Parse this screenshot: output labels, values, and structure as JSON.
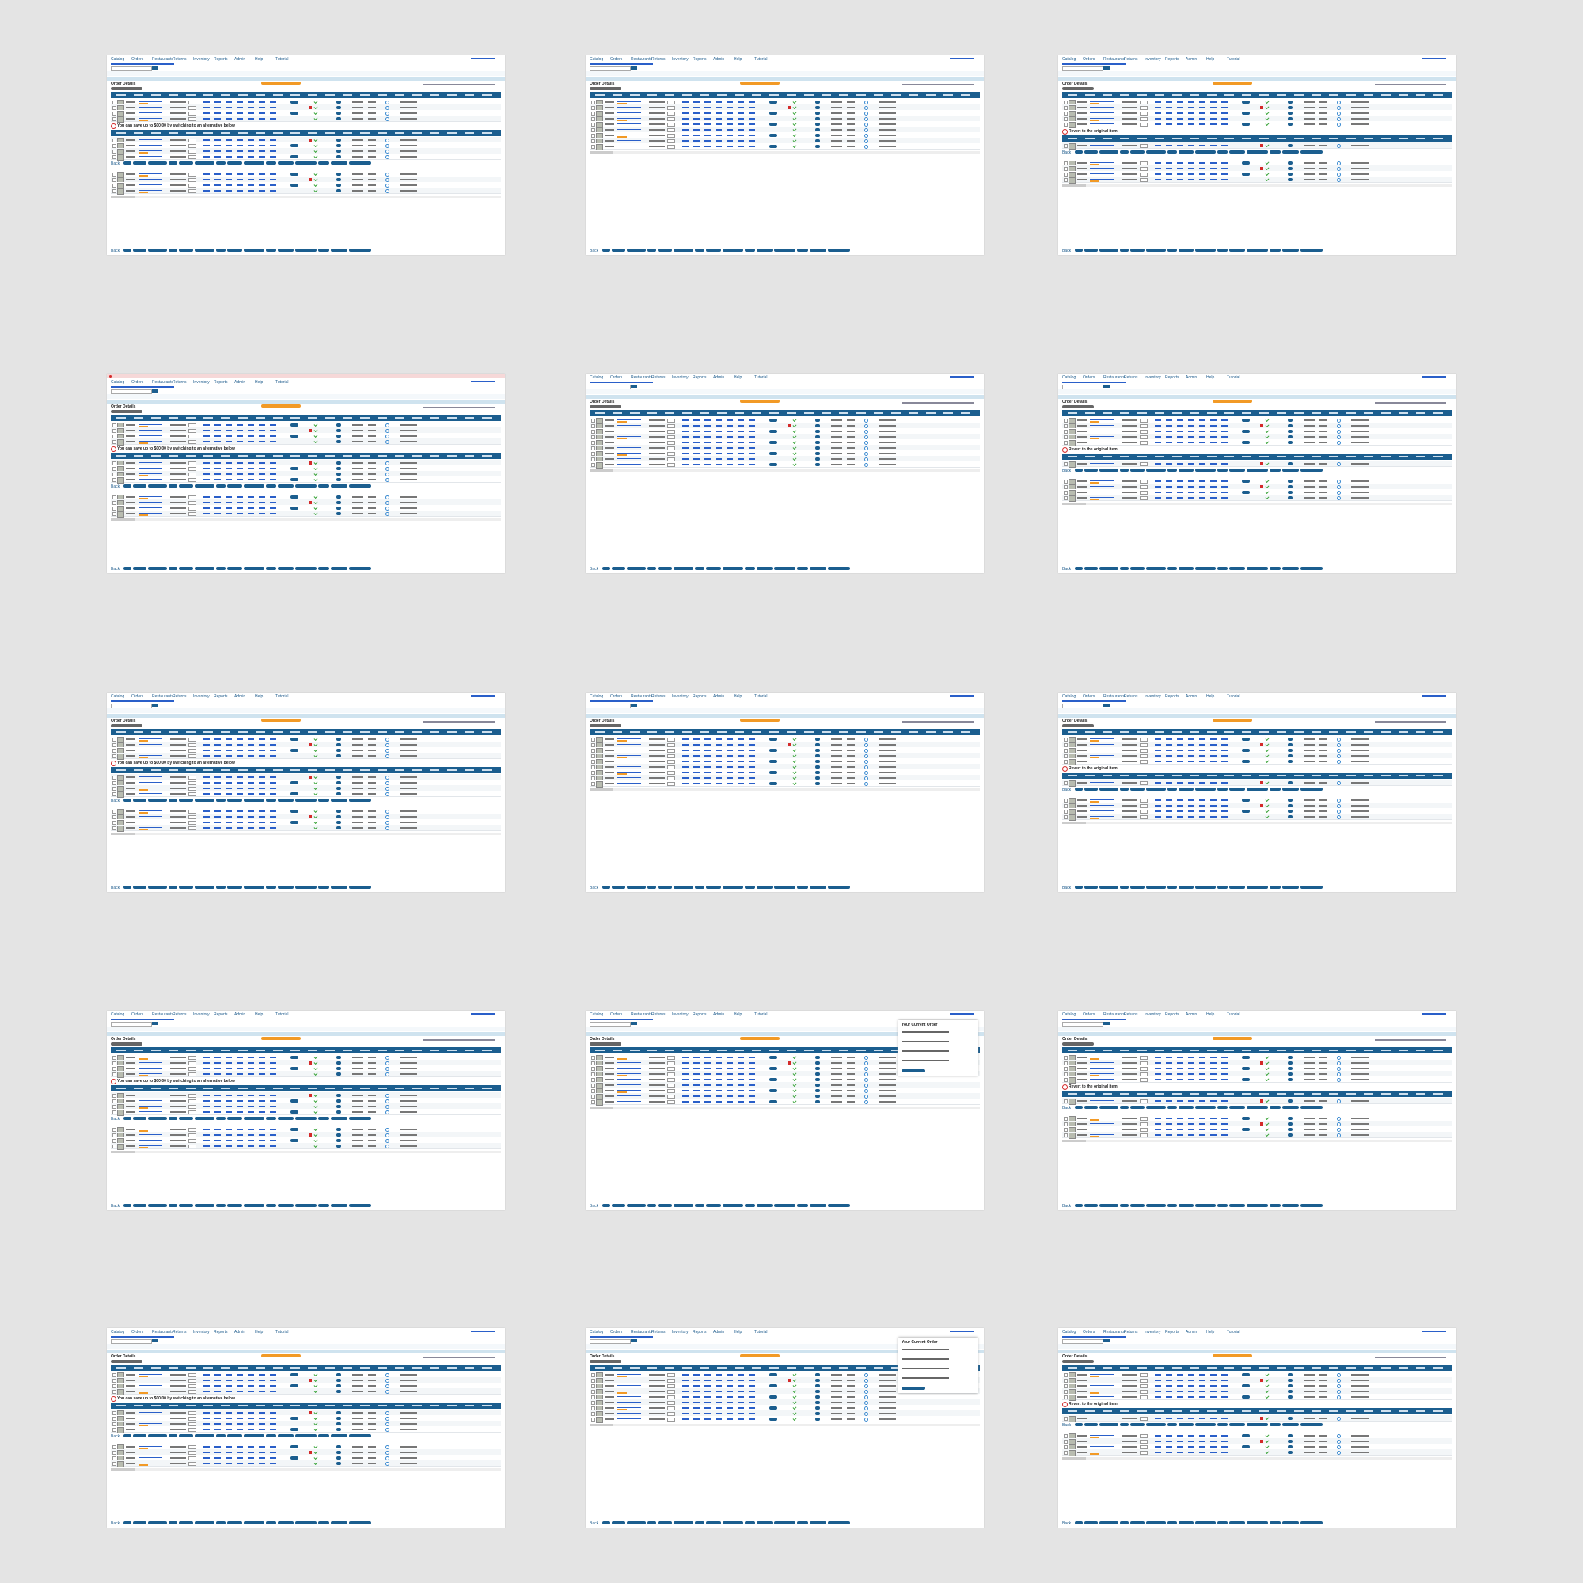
{
  "nav": [
    "Catalog",
    "Orders",
    "Restaurants",
    "Returns",
    "Inventory",
    "Reports",
    "Admin",
    "Help",
    "Tutorial"
  ],
  "title": "Order Details",
  "back": "Back",
  "panels": [
    {
      "banner": "You can save up to $00.00 by switching to an alternative below"
    },
    {
      "banner": null
    },
    {
      "banner": "Revert to the original item"
    },
    {
      "banner": "You can save up to $00.00 by switching to an alternative below",
      "error": true
    },
    {
      "banner": null
    },
    {
      "banner": "Revert to the original item"
    },
    {
      "banner": "You can save up to $00.00 by switching to an alternative below"
    },
    {
      "banner": null
    },
    {
      "banner": "Revert to the original item"
    },
    {
      "banner": "You can save up to $00.00 by switching to an alternative below"
    },
    {
      "banner": null,
      "popup": "Your Current Order"
    },
    {
      "banner": "Revert to the original item"
    },
    {
      "banner": "You can save up to $00.00 by switching to an alternative below"
    },
    {
      "banner": null,
      "popup": "Your Current Order"
    },
    {
      "banner": "Revert to the original item"
    }
  ]
}
